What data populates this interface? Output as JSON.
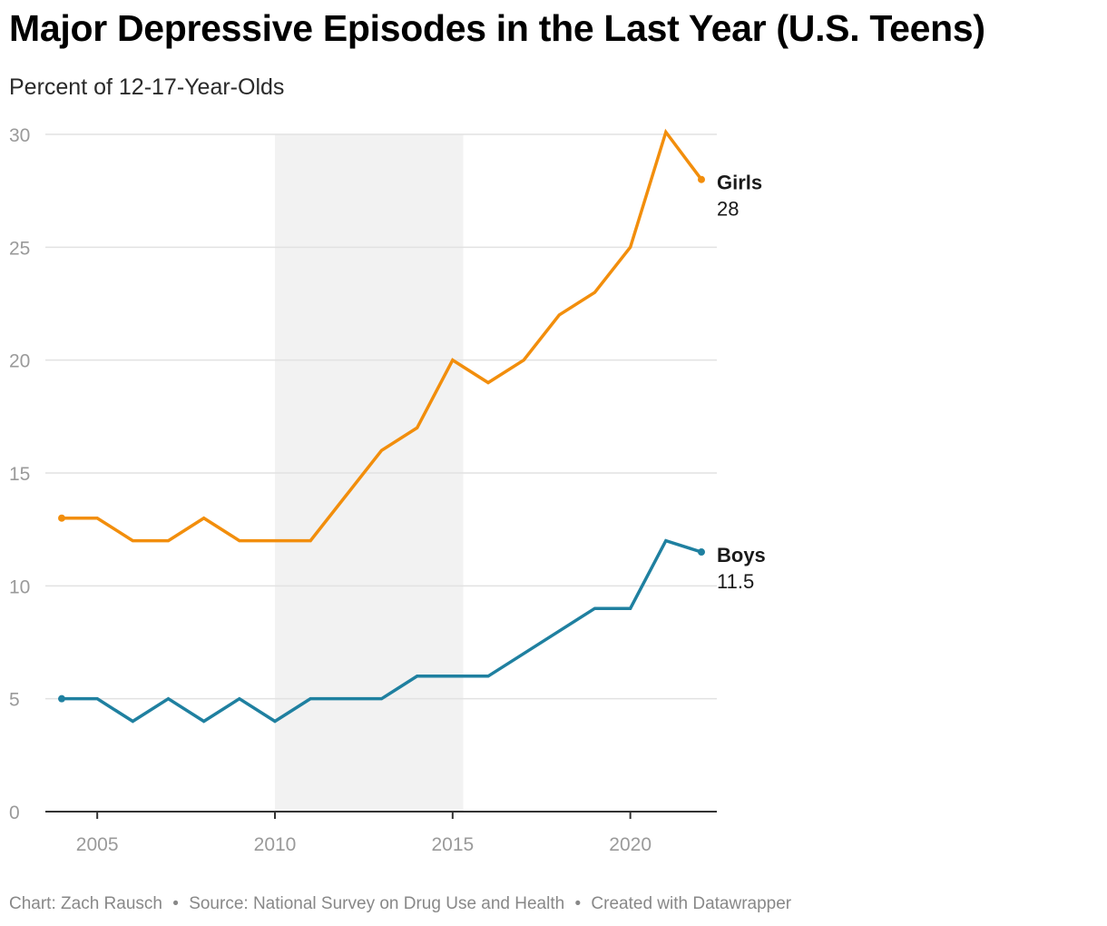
{
  "title": "Major Depressive Episodes in the Last Year (U.S. Teens)",
  "subtitle": "Percent of 12-17-Year-Olds",
  "footer": {
    "chart_by": "Chart: Zach Rausch",
    "source": "Source: National Survey on Drug Use and Health",
    "tool": "Created with Datawrapper",
    "separator": "•"
  },
  "chart_data": {
    "type": "line",
    "title": "Major Depressive Episodes in the Last Year (U.S. Teens)",
    "subtitle": "Percent of 12-17-Year-Olds",
    "xlabel": "",
    "ylabel": "",
    "x": [
      2004,
      2005,
      2006,
      2007,
      2008,
      2009,
      2010,
      2011,
      2012,
      2013,
      2014,
      2015,
      2016,
      2017,
      2018,
      2019,
      2020,
      2021,
      2022
    ],
    "xlim": [
      2003,
      2022.5
    ],
    "ylim": [
      0,
      30
    ],
    "xticks": [
      "2005",
      "2010",
      "2015",
      "2020"
    ],
    "yticks": [
      "0",
      "5",
      "10",
      "15",
      "20",
      "25",
      "30"
    ],
    "grid": true,
    "shaded_range": [
      2010,
      2015.3
    ],
    "series": [
      {
        "name": "Girls",
        "color": "#f28e0c",
        "end_label": "28",
        "values": [
          13,
          13,
          12,
          12,
          13,
          12,
          12,
          12,
          14,
          16,
          17,
          20,
          19,
          20,
          22,
          23,
          25,
          30.1,
          28
        ]
      },
      {
        "name": "Boys",
        "color": "#1f80a0",
        "end_label": "11.5",
        "values": [
          5,
          5,
          4,
          5,
          4,
          5,
          4,
          5,
          5,
          5,
          6,
          6,
          6,
          7,
          8,
          9,
          9,
          12,
          11.5
        ]
      }
    ]
  }
}
